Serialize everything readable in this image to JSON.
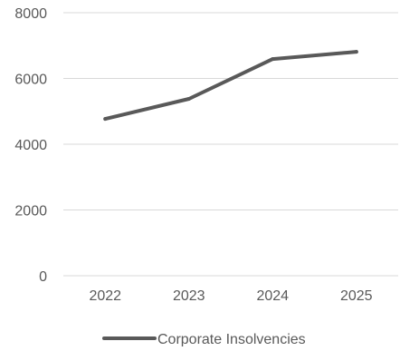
{
  "chart_data": {
    "type": "line",
    "categories": [
      "2022",
      "2023",
      "2024",
      "2025"
    ],
    "series": [
      {
        "name": "Corporate Insolvencies",
        "values": [
          4770,
          5380,
          6590,
          6810
        ],
        "color": "#595959"
      }
    ],
    "ylim": [
      0,
      8000
    ],
    "yticks": [
      0,
      2000,
      4000,
      6000,
      8000
    ],
    "ytick_labels": [
      "0",
      "2000",
      "4000",
      "6000",
      "8000"
    ],
    "grid": true,
    "legend": "bottom",
    "title": "",
    "xlabel": "",
    "ylabel": ""
  }
}
